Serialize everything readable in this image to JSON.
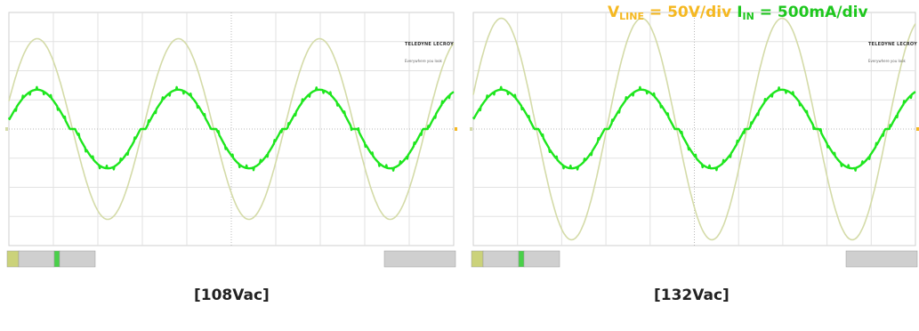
{
  "chart_data": [
    {
      "type": "line",
      "caption": "[108Vac]",
      "brand": {
        "name": "TELEDYNE LECROY",
        "tagline": "Everywhere you look"
      },
      "series": [
        {
          "name": "V_LINE",
          "color": "#d4dba8",
          "amplitude_div": 3.1
        },
        {
          "name": "I_IN",
          "color": "#1ee61e",
          "amplitude_div": 1.35,
          "deadband_div": 0.35
        }
      ],
      "cycles": 3.15,
      "phase_start": 0.05,
      "grid": {
        "divisions_x": 10,
        "divisions_y": 8
      }
    },
    {
      "type": "line",
      "caption": "[132Vac]",
      "brand": {
        "name": "TELEDYNE LECROY",
        "tagline": "Everywhere you look"
      },
      "series": [
        {
          "name": "V_LINE",
          "color": "#d4dba8",
          "amplitude_div": 3.8
        },
        {
          "name": "I_IN",
          "color": "#1ee61e",
          "amplitude_div": 1.35,
          "deadband_div": 0.35
        }
      ],
      "cycles": 3.15,
      "phase_start": 0.05,
      "grid": {
        "divisions_x": 10,
        "divisions_y": 8
      }
    }
  ],
  "legend": {
    "v_main": "V",
    "v_sub": "LINE",
    "v_value": " = 50V/div",
    "i_main": "I",
    "i_sub": "IN",
    "i_value": " = 500mA/div"
  }
}
